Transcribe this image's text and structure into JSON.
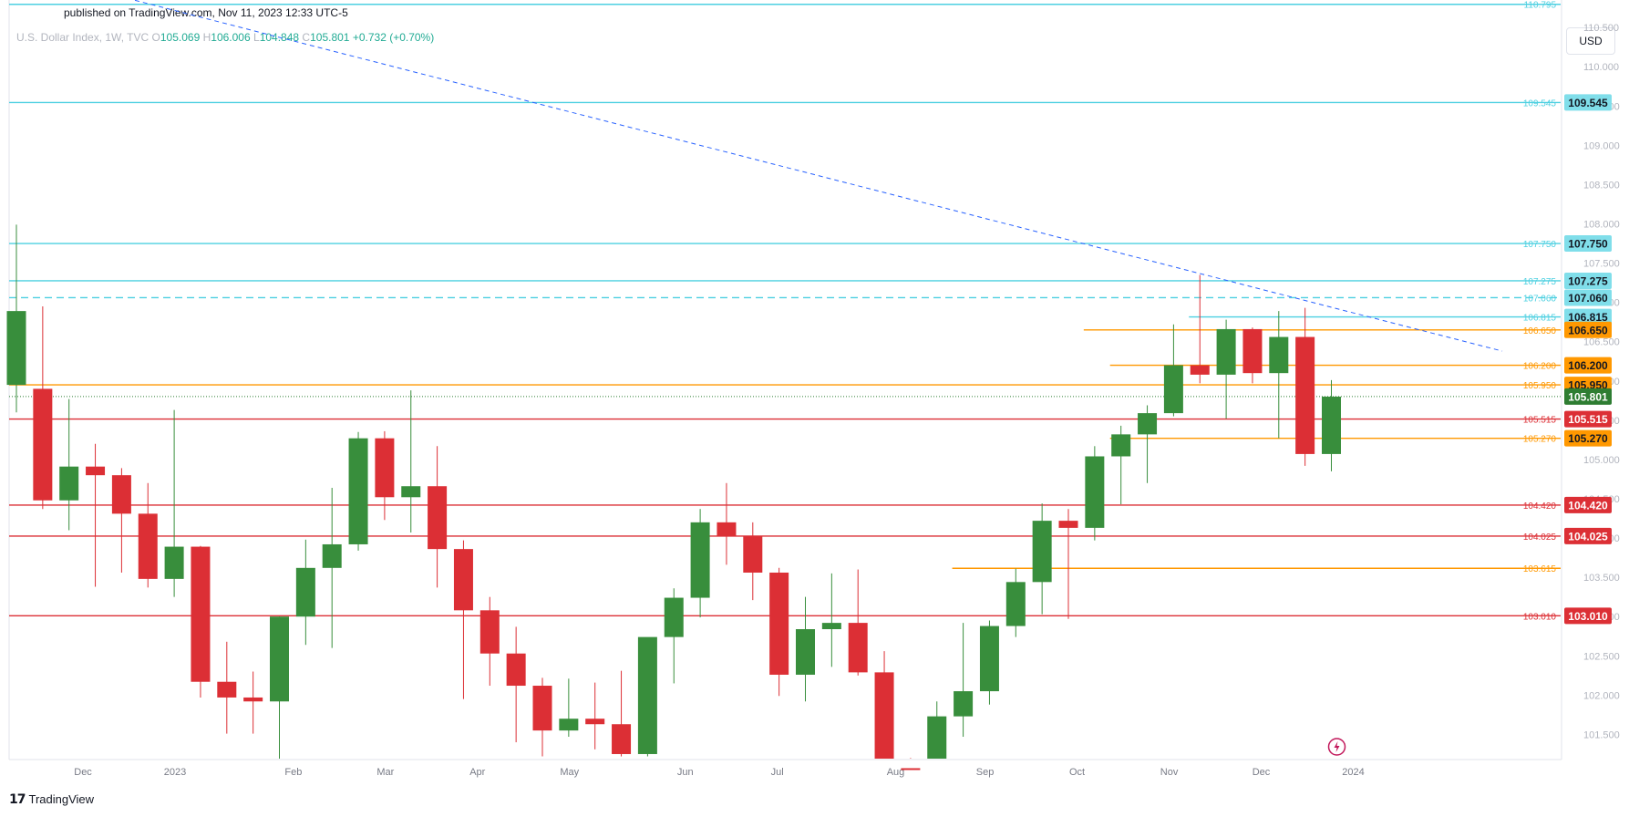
{
  "header": {
    "published": "published on TradingView.com, Nov 11, 2023 12:33 UTC-5"
  },
  "legend": {
    "symbol": "U.S. Dollar Index, 1W, TVC",
    "o_label": "O",
    "o_value": "105.069",
    "h_label": "H",
    "h_value": "106.006",
    "l_label": "L",
    "l_value": "104.848",
    "c_label": "C",
    "c_value": "105.801",
    "change": "+0.732 (+0.70%)"
  },
  "toolbar": {
    "currency": "USD"
  },
  "brand": {
    "name": "TradingView"
  },
  "colors": {
    "up": "#388e3c",
    "down": "#dc2f35",
    "cyan": "#4dd0e1",
    "orange": "#ff9800",
    "trend": "#2962ff",
    "current": "#2e7d32"
  },
  "chart_data": {
    "type": "candlestick",
    "ylim": [
      101.18,
      110.85
    ],
    "y_ticks": [
      "101.500",
      "102.000",
      "102.500",
      "103.000",
      "103.500",
      "104.000",
      "104.500",
      "105.000",
      "105.500",
      "106.000",
      "106.500",
      "107.000",
      "107.500",
      "108.000",
      "108.500",
      "109.000",
      "109.500",
      "110.000",
      "110.500"
    ],
    "x_ticks": [
      "Dec",
      "2023",
      "Feb",
      "Mar",
      "Apr",
      "May",
      "Jun",
      "Jul",
      "Aug",
      "Sep",
      "Oct",
      "Nov",
      "Dec",
      "2024"
    ],
    "candles": [
      {
        "o": 105.95,
        "h": 107.99,
        "l": 105.6,
        "c": 106.89
      },
      {
        "o": 105.9,
        "h": 106.95,
        "l": 104.37,
        "c": 104.48
      },
      {
        "o": 104.48,
        "h": 105.77,
        "l": 104.1,
        "c": 104.91
      },
      {
        "o": 104.91,
        "h": 105.2,
        "l": 103.38,
        "c": 104.8
      },
      {
        "o": 104.8,
        "h": 104.89,
        "l": 103.56,
        "c": 104.31
      },
      {
        "o": 104.31,
        "h": 104.7,
        "l": 103.37,
        "c": 103.48
      },
      {
        "o": 103.48,
        "h": 105.63,
        "l": 103.25,
        "c": 103.89
      },
      {
        "o": 103.89,
        "h": 103.9,
        "l": 101.97,
        "c": 102.17
      },
      {
        "o": 102.17,
        "h": 102.68,
        "l": 101.51,
        "c": 101.97
      },
      {
        "o": 101.97,
        "h": 102.3,
        "l": 101.51,
        "c": 101.92
      },
      {
        "o": 101.92,
        "h": 103.0,
        "l": 101.18,
        "c": 103.0
      },
      {
        "o": 103.0,
        "h": 103.98,
        "l": 102.64,
        "c": 103.62
      },
      {
        "o": 103.62,
        "h": 104.64,
        "l": 102.6,
        "c": 103.92
      },
      {
        "o": 103.92,
        "h": 105.35,
        "l": 103.84,
        "c": 105.27
      },
      {
        "o": 105.27,
        "h": 105.36,
        "l": 104.23,
        "c": 104.52
      },
      {
        "o": 104.52,
        "h": 105.88,
        "l": 104.07,
        "c": 104.66
      },
      {
        "o": 104.66,
        "h": 105.17,
        "l": 103.37,
        "c": 103.86
      },
      {
        "o": 103.86,
        "h": 103.97,
        "l": 101.95,
        "c": 103.08
      },
      {
        "o": 103.08,
        "h": 103.25,
        "l": 102.12,
        "c": 102.53
      },
      {
        "o": 102.53,
        "h": 102.87,
        "l": 101.4,
        "c": 102.12
      },
      {
        "o": 102.12,
        "h": 102.22,
        "l": 101.22,
        "c": 101.55
      },
      {
        "o": 101.55,
        "h": 102.21,
        "l": 101.47,
        "c": 101.7
      },
      {
        "o": 101.7,
        "h": 102.16,
        "l": 101.31,
        "c": 101.63
      },
      {
        "o": 101.63,
        "h": 102.31,
        "l": 101.22,
        "c": 101.25
      },
      {
        "o": 101.25,
        "h": 102.71,
        "l": 101.22,
        "c": 102.74
      },
      {
        "o": 102.74,
        "h": 103.36,
        "l": 102.15,
        "c": 103.24
      },
      {
        "o": 103.24,
        "h": 104.37,
        "l": 102.99,
        "c": 104.2
      },
      {
        "o": 104.2,
        "h": 104.7,
        "l": 103.66,
        "c": 104.03
      },
      {
        "o": 104.03,
        "h": 104.2,
        "l": 103.21,
        "c": 103.56
      },
      {
        "o": 103.56,
        "h": 103.62,
        "l": 101.99,
        "c": 102.26
      },
      {
        "o": 102.26,
        "h": 103.25,
        "l": 101.92,
        "c": 102.84
      },
      {
        "o": 102.84,
        "h": 103.55,
        "l": 102.36,
        "c": 102.92
      },
      {
        "o": 102.92,
        "h": 103.6,
        "l": 102.25,
        "c": 102.29
      },
      {
        "o": 102.29,
        "h": 102.56,
        "l": 100.77,
        "c": 101.07
      },
      {
        "o": 101.07,
        "h": 101.2,
        "l": 99.57,
        "c": 99.89
      },
      {
        "o": 99.89,
        "h": 101.92,
        "l": 99.89,
        "c": 101.73
      },
      {
        "o": 101.73,
        "h": 102.92,
        "l": 101.47,
        "c": 102.05
      },
      {
        "o": 102.05,
        "h": 102.95,
        "l": 101.88,
        "c": 102.88
      },
      {
        "o": 102.88,
        "h": 103.61,
        "l": 102.74,
        "c": 103.44
      },
      {
        "o": 103.44,
        "h": 104.44,
        "l": 103.03,
        "c": 104.22
      },
      {
        "o": 104.22,
        "h": 104.37,
        "l": 102.97,
        "c": 104.13
      },
      {
        "o": 104.13,
        "h": 105.17,
        "l": 103.97,
        "c": 105.04
      },
      {
        "o": 105.04,
        "h": 105.43,
        "l": 104.43,
        "c": 105.32
      },
      {
        "o": 105.32,
        "h": 105.69,
        "l": 104.7,
        "c": 105.59
      },
      {
        "o": 105.59,
        "h": 106.72,
        "l": 105.55,
        "c": 106.2
      },
      {
        "o": 106.2,
        "h": 107.35,
        "l": 105.97,
        "c": 106.08
      },
      {
        "o": 106.08,
        "h": 106.78,
        "l": 105.52,
        "c": 106.66
      },
      {
        "o": 106.66,
        "h": 106.68,
        "l": 105.97,
        "c": 106.1
      },
      {
        "o": 106.1,
        "h": 106.89,
        "l": 105.27,
        "c": 106.56
      },
      {
        "o": 106.56,
        "h": 106.93,
        "l": 104.92,
        "c": 105.07
      },
      {
        "o": 105.07,
        "h": 106.01,
        "l": 104.85,
        "c": 105.8
      }
    ],
    "levels": [
      {
        "value": 110.795,
        "label": "110.795",
        "color": "#4dd0e1",
        "dash": false,
        "tag": false,
        "xstart": "left"
      },
      {
        "value": 109.545,
        "label": "109.545",
        "color": "#4dd0e1",
        "dash": false,
        "tag": true,
        "xstart": "left"
      },
      {
        "value": 107.75,
        "label": "107.750",
        "color": "#4dd0e1",
        "dash": false,
        "tag": true,
        "xstart": "left"
      },
      {
        "value": 107.275,
        "label": "107.275",
        "color": "#4dd0e1",
        "dash": false,
        "tag": true,
        "xstart": "left"
      },
      {
        "value": 107.06,
        "label": "107.060",
        "color": "#4dd0e1",
        "dash": true,
        "tag": true,
        "xstart": "left"
      },
      {
        "value": 106.815,
        "label": "106.815",
        "color": "#4dd0e1",
        "dash": false,
        "tag": true,
        "xstart": 45
      },
      {
        "value": 106.65,
        "label": "106.650",
        "color": "#ff9800",
        "dash": false,
        "tag": true,
        "xstart": 41
      },
      {
        "value": 106.2,
        "label": "106.200",
        "color": "#ff9800",
        "dash": false,
        "tag": true,
        "xstart": 42
      },
      {
        "value": 105.95,
        "label": "105.950",
        "color": "#ff9800",
        "dash": false,
        "tag": true,
        "xstart": "left"
      },
      {
        "value": 105.515,
        "label": "105.515",
        "color": "#dc2f35",
        "dash": false,
        "tag": true,
        "xstart": "left"
      },
      {
        "value": 105.27,
        "label": "105.270",
        "color": "#ff9800",
        "dash": false,
        "tag": true,
        "xstart": 42
      },
      {
        "value": 104.42,
        "label": "104.420",
        "color": "#dc2f35",
        "dash": false,
        "tag": true,
        "xstart": "left"
      },
      {
        "value": 104.025,
        "label": "104.025",
        "color": "#dc2f35",
        "dash": false,
        "tag": true,
        "xstart": "left"
      },
      {
        "value": 103.615,
        "label": "103.615",
        "color": "#ff9800",
        "dash": false,
        "tag": false,
        "xstart": 36
      },
      {
        "value": 103.01,
        "label": "103.010",
        "color": "#dc2f35",
        "dash": false,
        "tag": true,
        "xstart": "left"
      }
    ],
    "current": {
      "value": 105.801,
      "label": "105.801"
    },
    "trendline": {
      "from": {
        "idx": 3.3,
        "value": 110.95
      },
      "to": {
        "idx": 56.5,
        "value": 106.38
      }
    },
    "flash_marker_idx": 50
  }
}
